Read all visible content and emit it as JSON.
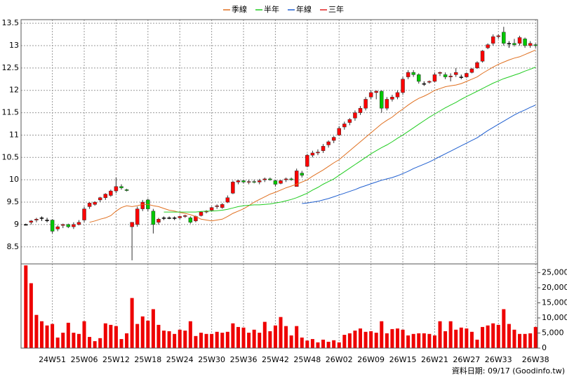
{
  "chart_data": [
    {
      "type": "candlestick",
      "legend": "top",
      "grid": true,
      "up_color": "#ff0000",
      "down_color": "#00c800",
      "flat_color": "#000000",
      "ylim": [
        8.12,
        13.58
      ],
      "yticks": [
        8.5,
        9,
        9.5,
        10,
        10.5,
        11,
        11.5,
        12,
        12.5,
        13,
        13.5
      ],
      "open": [
        9.0,
        9.05,
        9.1,
        9.15,
        9.1,
        9.1,
        8.9,
        8.98,
        9.0,
        8.95,
        9.0,
        9.1,
        9.4,
        9.45,
        9.55,
        9.6,
        9.65,
        9.75,
        9.85,
        9.78,
        8.95,
        9.0,
        9.35,
        9.55,
        9.3,
        9.05,
        9.15,
        9.15,
        9.15,
        9.15,
        9.18,
        9.15,
        9.08,
        9.2,
        9.28,
        9.32,
        9.4,
        9.38,
        9.5,
        9.7,
        9.95,
        9.98,
        9.95,
        9.96,
        9.95,
        10.0,
        10.02,
        9.98,
        9.92,
        10.0,
        10.02,
        9.85,
        10.15,
        10.3,
        10.55,
        10.6,
        10.65,
        10.78,
        10.88,
        11.0,
        11.18,
        11.28,
        11.38,
        11.5,
        11.6,
        11.85,
        11.95,
        11.98,
        11.6,
        11.8,
        11.85,
        11.95,
        12.3,
        12.4,
        12.35,
        12.15,
        12.18,
        12.2,
        12.38,
        12.35,
        12.3,
        12.35,
        12.3,
        12.3,
        12.4,
        12.5,
        12.65,
        12.95,
        13.05,
        13.2,
        13.3,
        13.05,
        13.05,
        13.05,
        13.15,
        13.0,
        13.02
      ],
      "high": [
        9.02,
        9.1,
        9.15,
        9.18,
        9.15,
        9.12,
        8.98,
        9.02,
        9.02,
        9.05,
        9.1,
        9.4,
        9.5,
        9.52,
        9.62,
        9.7,
        9.78,
        10.05,
        9.9,
        9.8,
        9.05,
        9.4,
        9.55,
        9.58,
        9.35,
        9.15,
        9.18,
        9.18,
        9.18,
        9.2,
        9.22,
        9.18,
        9.2,
        9.3,
        9.32,
        9.4,
        9.45,
        9.48,
        9.65,
        9.98,
        10.0,
        10.0,
        10.0,
        10.0,
        10.02,
        10.05,
        10.05,
        10.0,
        10.0,
        10.05,
        10.05,
        10.25,
        10.2,
        10.58,
        10.65,
        10.68,
        10.8,
        10.88,
        10.98,
        11.2,
        11.3,
        11.38,
        11.55,
        11.65,
        11.85,
        12.0,
        12.0,
        12.0,
        11.85,
        11.9,
        12.0,
        12.3,
        12.45,
        12.45,
        12.38,
        12.2,
        12.22,
        12.4,
        12.42,
        12.4,
        12.38,
        12.5,
        12.35,
        12.4,
        12.5,
        12.65,
        12.9,
        13.05,
        13.25,
        13.25,
        13.42,
        13.1,
        13.15,
        13.22,
        13.18,
        13.1,
        13.05
      ],
      "low": [
        8.98,
        9.0,
        9.05,
        9.08,
        9.05,
        8.8,
        8.85,
        8.92,
        8.92,
        8.9,
        8.98,
        9.05,
        9.35,
        9.42,
        9.5,
        9.55,
        9.62,
        9.7,
        9.78,
        9.74,
        8.2,
        8.95,
        9.3,
        9.3,
        8.8,
        9.0,
        9.1,
        9.12,
        9.1,
        9.12,
        9.15,
        9.02,
        9.05,
        9.18,
        9.25,
        9.3,
        9.35,
        9.35,
        9.48,
        9.68,
        9.9,
        9.92,
        9.9,
        9.92,
        9.9,
        9.95,
        9.98,
        9.85,
        9.9,
        9.95,
        9.98,
        9.85,
        10.05,
        10.28,
        10.5,
        10.55,
        10.6,
        10.72,
        10.82,
        10.98,
        11.12,
        11.22,
        11.32,
        11.45,
        11.55,
        11.8,
        11.8,
        11.5,
        11.55,
        11.75,
        11.8,
        11.9,
        12.25,
        12.3,
        12.15,
        12.1,
        12.15,
        12.18,
        12.32,
        12.25,
        12.2,
        12.3,
        12.25,
        12.28,
        12.38,
        12.48,
        12.62,
        12.92,
        13.0,
        13.15,
        13.0,
        12.95,
        12.98,
        13.0,
        12.95,
        12.95,
        12.95
      ],
      "close": [
        9.0,
        9.08,
        9.12,
        9.15,
        9.1,
        8.85,
        8.95,
        9.0,
        8.95,
        9.0,
        9.05,
        9.35,
        9.48,
        9.5,
        9.6,
        9.68,
        9.75,
        9.85,
        9.82,
        9.76,
        9.05,
        9.35,
        9.5,
        9.35,
        9.0,
        9.12,
        9.15,
        9.15,
        9.15,
        9.18,
        9.2,
        9.05,
        9.18,
        9.28,
        9.3,
        9.38,
        9.42,
        9.45,
        9.6,
        9.95,
        9.98,
        9.95,
        9.96,
        9.95,
        9.98,
        10.02,
        10.0,
        9.9,
        9.98,
        10.02,
        10.0,
        10.2,
        10.1,
        10.55,
        10.6,
        10.62,
        10.75,
        10.85,
        10.95,
        11.15,
        11.25,
        11.35,
        11.5,
        11.6,
        11.8,
        11.95,
        11.98,
        11.6,
        11.8,
        11.85,
        11.95,
        12.25,
        12.4,
        12.35,
        12.2,
        12.15,
        12.2,
        12.35,
        12.4,
        12.3,
        12.32,
        12.4,
        12.3,
        12.38,
        12.48,
        12.62,
        12.88,
        13.02,
        13.2,
        13.22,
        13.05,
        13.05,
        13.02,
        13.18,
        13.0,
        13.05,
        13.0
      ],
      "series": [
        {
          "name": "季線",
          "color": "#e07020",
          "values": [
            null,
            null,
            null,
            null,
            null,
            null,
            null,
            null,
            null,
            null,
            null,
            null,
            9.05,
            9.08,
            9.12,
            9.15,
            9.2,
            9.3,
            9.38,
            9.42,
            9.4,
            9.42,
            9.45,
            9.45,
            9.42,
            9.4,
            9.36,
            9.32,
            9.3,
            9.27,
            9.25,
            9.22,
            9.18,
            9.12,
            9.1,
            9.08,
            9.1,
            9.12,
            9.18,
            9.25,
            9.3,
            9.35,
            9.42,
            9.5,
            9.56,
            9.62,
            9.68,
            9.72,
            9.77,
            9.82,
            9.86,
            9.9,
            9.95,
            10.0,
            10.08,
            10.15,
            10.22,
            10.3,
            10.38,
            10.45,
            10.55,
            10.65,
            10.75,
            10.85,
            10.95,
            11.05,
            11.15,
            11.25,
            11.33,
            11.4,
            11.5,
            11.58,
            11.67,
            11.75,
            11.82,
            11.87,
            11.93,
            12.0,
            12.04,
            12.08,
            12.1,
            12.12,
            12.15,
            12.2,
            12.25,
            12.3,
            12.38,
            12.45,
            12.52,
            12.58,
            12.63,
            12.68,
            12.72,
            12.75,
            12.8,
            12.85,
            12.9
          ]
        },
        {
          "name": "半年",
          "color": "#20cc20",
          "values": [
            null,
            null,
            null,
            null,
            null,
            null,
            null,
            null,
            null,
            null,
            null,
            null,
            null,
            null,
            null,
            null,
            null,
            null,
            null,
            null,
            null,
            null,
            null,
            null,
            null,
            null,
            9.28,
            9.28,
            9.28,
            9.28,
            9.28,
            9.28,
            9.28,
            9.29,
            9.3,
            9.3,
            9.31,
            9.32,
            9.34,
            9.37,
            9.4,
            9.42,
            9.43,
            9.44,
            9.44,
            9.45,
            9.46,
            9.48,
            9.5,
            9.53,
            9.56,
            9.6,
            9.65,
            9.7,
            9.77,
            9.83,
            9.9,
            9.96,
            10.02,
            10.1,
            10.18,
            10.26,
            10.34,
            10.42,
            10.5,
            10.58,
            10.65,
            10.72,
            10.78,
            10.85,
            10.93,
            11.0,
            11.08,
            11.16,
            11.24,
            11.32,
            11.4,
            11.47,
            11.54,
            11.61,
            11.67,
            11.73,
            11.8,
            11.86,
            11.92,
            11.98,
            12.04,
            12.1,
            12.16,
            12.21,
            12.26,
            12.3,
            12.34,
            12.38,
            12.43,
            12.47,
            12.52
          ]
        },
        {
          "name": "年線",
          "color": "#1f5fd0",
          "values": [
            null,
            null,
            null,
            null,
            null,
            null,
            null,
            null,
            null,
            null,
            null,
            null,
            null,
            null,
            null,
            null,
            null,
            null,
            null,
            null,
            null,
            null,
            null,
            null,
            null,
            null,
            null,
            null,
            null,
            null,
            null,
            null,
            null,
            null,
            null,
            null,
            null,
            null,
            null,
            null,
            null,
            null,
            null,
            null,
            null,
            null,
            null,
            null,
            null,
            null,
            null,
            null,
            9.47,
            9.48,
            9.5,
            9.52,
            9.55,
            9.58,
            9.62,
            9.66,
            9.7,
            9.74,
            9.78,
            9.83,
            9.87,
            9.91,
            9.95,
            9.99,
            10.02,
            10.05,
            10.09,
            10.14,
            10.19,
            10.25,
            10.3,
            10.35,
            10.4,
            10.46,
            10.52,
            10.58,
            10.64,
            10.7,
            10.76,
            10.82,
            10.88,
            10.94,
            11.02,
            11.1,
            11.17,
            11.24,
            11.31,
            11.38,
            11.45,
            11.51,
            11.56,
            11.62,
            11.67
          ]
        },
        {
          "name": "三年",
          "color": "#e02020"
        }
      ]
    },
    {
      "type": "bar",
      "color": "#ee0000",
      "y_axis_position": "right",
      "grid": true,
      "categories": [
        null,
        null,
        null,
        null,
        null,
        "24W51",
        null,
        null,
        null,
        null,
        null,
        "25W06",
        null,
        null,
        null,
        null,
        null,
        "25W12",
        null,
        null,
        null,
        null,
        null,
        "25W18",
        null,
        null,
        null,
        null,
        null,
        "25W24",
        null,
        null,
        null,
        null,
        null,
        "25W30",
        null,
        null,
        null,
        null,
        null,
        "25W36",
        null,
        null,
        null,
        null,
        null,
        "25W42",
        null,
        null,
        null,
        null,
        null,
        "25W48",
        null,
        null,
        null,
        null,
        null,
        "26W02",
        null,
        null,
        null,
        null,
        null,
        "26W09",
        null,
        null,
        null,
        null,
        null,
        "26W15",
        null,
        null,
        null,
        null,
        null,
        "26W21",
        null,
        null,
        null,
        null,
        null,
        "26W27",
        null,
        null,
        null,
        null,
        null,
        "26W33",
        null,
        null,
        null,
        null,
        null,
        null,
        "26W38"
      ],
      "values": [
        27400,
        21500,
        11000,
        8900,
        7500,
        8000,
        3500,
        5100,
        8400,
        5100,
        4700,
        8900,
        3700,
        2300,
        3300,
        8200,
        7700,
        7300,
        3000,
        4900,
        16600,
        8000,
        10500,
        9100,
        12900,
        7700,
        5800,
        5600,
        4700,
        6100,
        5800,
        8900,
        4000,
        5100,
        4700,
        4700,
        5400,
        5100,
        5400,
        8200,
        7000,
        6800,
        5100,
        6100,
        5100,
        8700,
        5600,
        7500,
        10300,
        7300,
        4200,
        7300,
        3500,
        2500,
        3000,
        1900,
        2800,
        2100,
        2600,
        1900,
        4400,
        4900,
        5800,
        6500,
        5400,
        5600,
        5100,
        8900,
        4900,
        6300,
        6500,
        6100,
        4200,
        4700,
        4900,
        4900,
        4700,
        4200,
        8900,
        5600,
        8900,
        6100,
        6800,
        6500,
        5400,
        2800,
        7000,
        7500,
        8200,
        7700,
        12900,
        8000,
        6100,
        4700,
        4700,
        4900,
        7000
      ],
      "ylim": [
        0,
        27900
      ],
      "yticks": [
        0,
        {
          "value": 5000,
          "label": "5,000"
        },
        {
          "value": 10000,
          "label": "10,000"
        },
        {
          "value": 15000,
          "label": "15,000"
        },
        {
          "value": 20000,
          "label": "20,000"
        },
        {
          "value": 25000,
          "label": "25,000"
        }
      ],
      "source": "資料日期: 09/17 (Goodinfo.tw)"
    }
  ]
}
